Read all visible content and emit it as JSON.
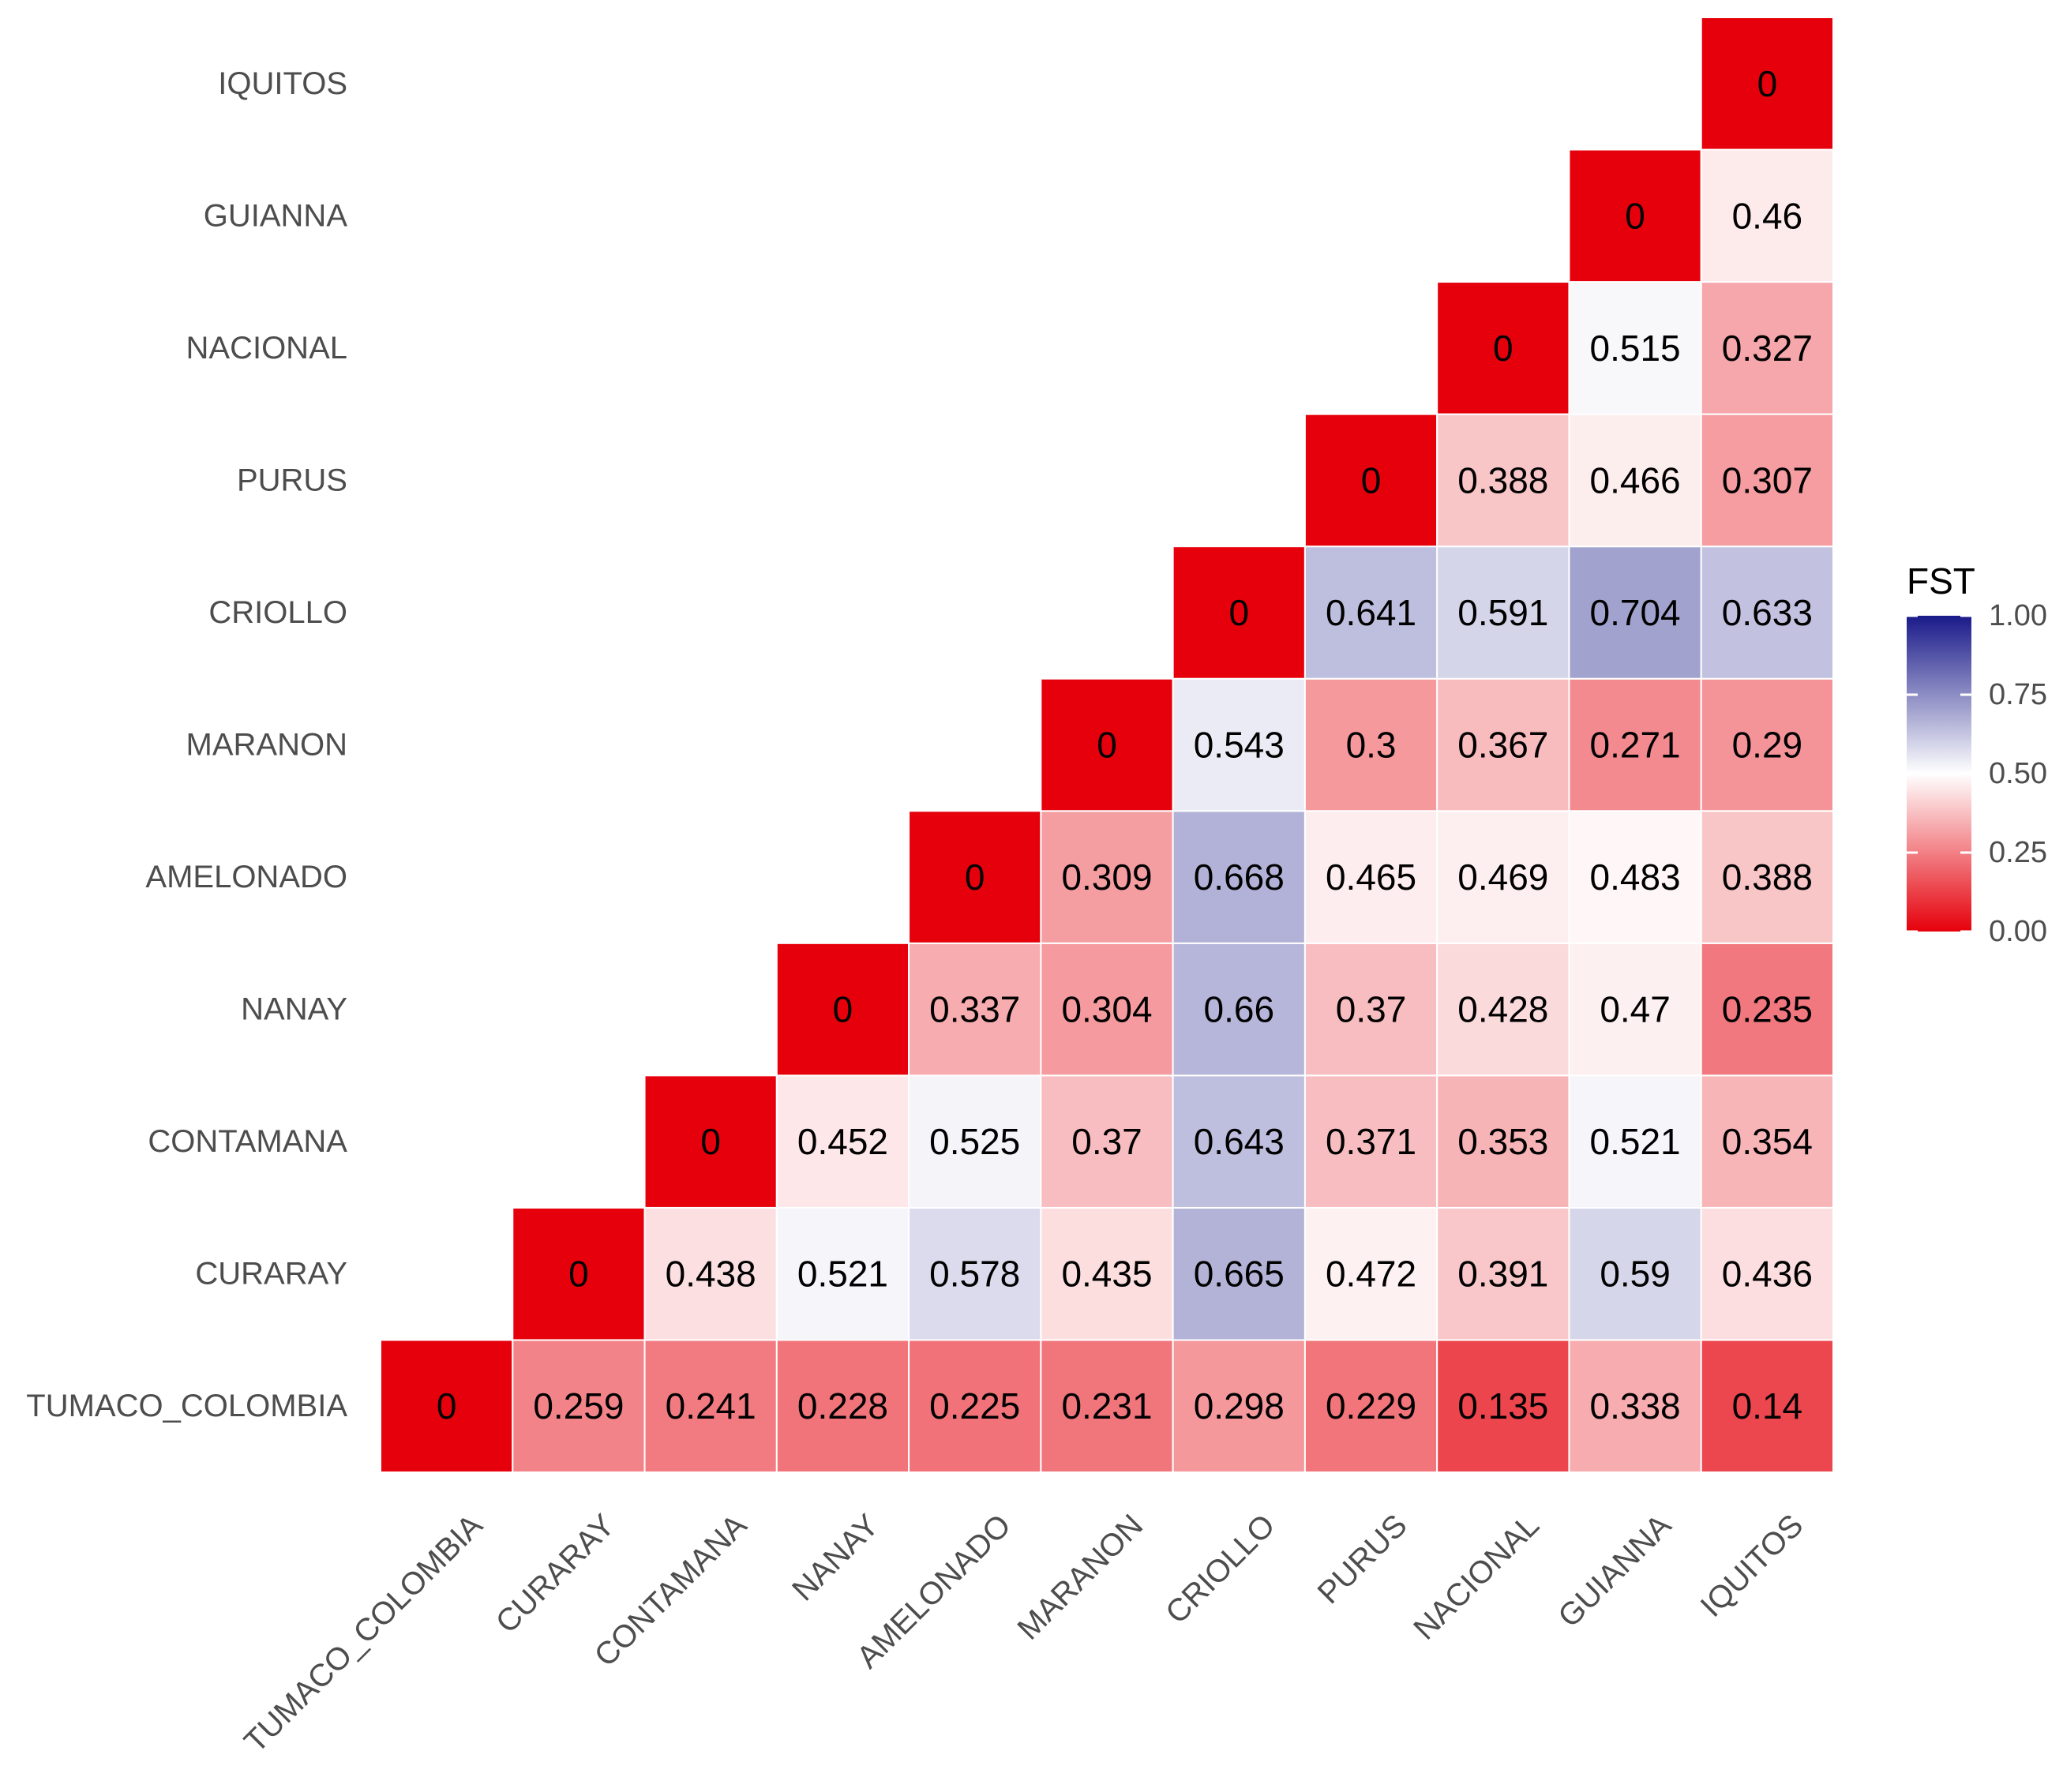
{
  "chart_data": {
    "type": "heatmap",
    "title": "",
    "xlabel": "",
    "ylabel": "",
    "legend_title": "FST",
    "legend_position": "right",
    "legend_range": [
      0,
      1
    ],
    "legend_ticks": [
      "0.00",
      "0.25",
      "0.50",
      "0.75",
      "1.00"
    ],
    "colors": {
      "low": "#e5000b",
      "mid": "#ffffff",
      "high": "#1a1a8a",
      "midpoint": 0.5,
      "cell_border": "#ffffff",
      "label_text": "#4d4d4d"
    },
    "x_categories": [
      "TUMACO_COLOMBIA",
      "CURARAY",
      "CONTAMANA",
      "NANAY",
      "AMELONADO",
      "MARANON",
      "CRIOLLO",
      "PURUS",
      "NACIONAL",
      "GUIANNA",
      "IQUITOS"
    ],
    "y_categories": [
      "TUMACO_COLOMBIA",
      "CURARAY",
      "CONTAMANA",
      "NANAY",
      "AMELONADO",
      "MARANON",
      "CRIOLLO",
      "PURUS",
      "NACIONAL",
      "GUIANNA",
      "IQUITOS"
    ],
    "cells": [
      {
        "x": "TUMACO_COLOMBIA",
        "y": "TUMACO_COLOMBIA",
        "value": 0,
        "label": "0"
      },
      {
        "x": "CURARAY",
        "y": "TUMACO_COLOMBIA",
        "value": 0.259,
        "label": "0.259"
      },
      {
        "x": "CONTAMANA",
        "y": "TUMACO_COLOMBIA",
        "value": 0.241,
        "label": "0.241"
      },
      {
        "x": "NANAY",
        "y": "TUMACO_COLOMBIA",
        "value": 0.228,
        "label": "0.228"
      },
      {
        "x": "AMELONADO",
        "y": "TUMACO_COLOMBIA",
        "value": 0.225,
        "label": "0.225"
      },
      {
        "x": "MARANON",
        "y": "TUMACO_COLOMBIA",
        "value": 0.231,
        "label": "0.231"
      },
      {
        "x": "CRIOLLO",
        "y": "TUMACO_COLOMBIA",
        "value": 0.298,
        "label": "0.298"
      },
      {
        "x": "PURUS",
        "y": "TUMACO_COLOMBIA",
        "value": 0.229,
        "label": "0.229"
      },
      {
        "x": "NACIONAL",
        "y": "TUMACO_COLOMBIA",
        "value": 0.135,
        "label": "0.135"
      },
      {
        "x": "GUIANNA",
        "y": "TUMACO_COLOMBIA",
        "value": 0.338,
        "label": "0.338"
      },
      {
        "x": "IQUITOS",
        "y": "TUMACO_COLOMBIA",
        "value": 0.14,
        "label": "0.14"
      },
      {
        "x": "CURARAY",
        "y": "CURARAY",
        "value": 0,
        "label": "0"
      },
      {
        "x": "CONTAMANA",
        "y": "CURARAY",
        "value": 0.438,
        "label": "0.438"
      },
      {
        "x": "NANAY",
        "y": "CURARAY",
        "value": 0.521,
        "label": "0.521"
      },
      {
        "x": "AMELONADO",
        "y": "CURARAY",
        "value": 0.578,
        "label": "0.578"
      },
      {
        "x": "MARANON",
        "y": "CURARAY",
        "value": 0.435,
        "label": "0.435"
      },
      {
        "x": "CRIOLLO",
        "y": "CURARAY",
        "value": 0.665,
        "label": "0.665"
      },
      {
        "x": "PURUS",
        "y": "CURARAY",
        "value": 0.472,
        "label": "0.472"
      },
      {
        "x": "NACIONAL",
        "y": "CURARAY",
        "value": 0.391,
        "label": "0.391"
      },
      {
        "x": "GUIANNA",
        "y": "CURARAY",
        "value": 0.59,
        "label": "0.59"
      },
      {
        "x": "IQUITOS",
        "y": "CURARAY",
        "value": 0.436,
        "label": "0.436"
      },
      {
        "x": "CONTAMANA",
        "y": "CONTAMANA",
        "value": 0,
        "label": "0"
      },
      {
        "x": "NANAY",
        "y": "CONTAMANA",
        "value": 0.452,
        "label": "0.452"
      },
      {
        "x": "AMELONADO",
        "y": "CONTAMANA",
        "value": 0.525,
        "label": "0.525"
      },
      {
        "x": "MARANON",
        "y": "CONTAMANA",
        "value": 0.37,
        "label": "0.37"
      },
      {
        "x": "CRIOLLO",
        "y": "CONTAMANA",
        "value": 0.643,
        "label": "0.643"
      },
      {
        "x": "PURUS",
        "y": "CONTAMANA",
        "value": 0.371,
        "label": "0.371"
      },
      {
        "x": "NACIONAL",
        "y": "CONTAMANA",
        "value": 0.353,
        "label": "0.353"
      },
      {
        "x": "GUIANNA",
        "y": "CONTAMANA",
        "value": 0.521,
        "label": "0.521"
      },
      {
        "x": "IQUITOS",
        "y": "CONTAMANA",
        "value": 0.354,
        "label": "0.354"
      },
      {
        "x": "NANAY",
        "y": "NANAY",
        "value": 0,
        "label": "0"
      },
      {
        "x": "AMELONADO",
        "y": "NANAY",
        "value": 0.337,
        "label": "0.337"
      },
      {
        "x": "MARANON",
        "y": "NANAY",
        "value": 0.304,
        "label": "0.304"
      },
      {
        "x": "CRIOLLO",
        "y": "NANAY",
        "value": 0.66,
        "label": "0.66"
      },
      {
        "x": "PURUS",
        "y": "NANAY",
        "value": 0.37,
        "label": "0.37"
      },
      {
        "x": "NACIONAL",
        "y": "NANAY",
        "value": 0.428,
        "label": "0.428"
      },
      {
        "x": "GUIANNA",
        "y": "NANAY",
        "value": 0.47,
        "label": "0.47"
      },
      {
        "x": "IQUITOS",
        "y": "NANAY",
        "value": 0.235,
        "label": "0.235"
      },
      {
        "x": "AMELONADO",
        "y": "AMELONADO",
        "value": 0,
        "label": "0"
      },
      {
        "x": "MARANON",
        "y": "AMELONADO",
        "value": 0.309,
        "label": "0.309"
      },
      {
        "x": "CRIOLLO",
        "y": "AMELONADO",
        "value": 0.668,
        "label": "0.668"
      },
      {
        "x": "PURUS",
        "y": "AMELONADO",
        "value": 0.465,
        "label": "0.465"
      },
      {
        "x": "NACIONAL",
        "y": "AMELONADO",
        "value": 0.469,
        "label": "0.469"
      },
      {
        "x": "GUIANNA",
        "y": "AMELONADO",
        "value": 0.483,
        "label": "0.483"
      },
      {
        "x": "IQUITOS",
        "y": "AMELONADO",
        "value": 0.388,
        "label": "0.388"
      },
      {
        "x": "MARANON",
        "y": "MARANON",
        "value": 0,
        "label": "0"
      },
      {
        "x": "CRIOLLO",
        "y": "MARANON",
        "value": 0.543,
        "label": "0.543"
      },
      {
        "x": "PURUS",
        "y": "MARANON",
        "value": 0.3,
        "label": "0.3"
      },
      {
        "x": "NACIONAL",
        "y": "MARANON",
        "value": 0.367,
        "label": "0.367"
      },
      {
        "x": "GUIANNA",
        "y": "MARANON",
        "value": 0.271,
        "label": "0.271"
      },
      {
        "x": "IQUITOS",
        "y": "MARANON",
        "value": 0.29,
        "label": "0.29"
      },
      {
        "x": "CRIOLLO",
        "y": "CRIOLLO",
        "value": 0,
        "label": "0"
      },
      {
        "x": "PURUS",
        "y": "CRIOLLO",
        "value": 0.641,
        "label": "0.641"
      },
      {
        "x": "NACIONAL",
        "y": "CRIOLLO",
        "value": 0.591,
        "label": "0.591"
      },
      {
        "x": "GUIANNA",
        "y": "CRIOLLO",
        "value": 0.704,
        "label": "0.704"
      },
      {
        "x": "IQUITOS",
        "y": "CRIOLLO",
        "value": 0.633,
        "label": "0.633"
      },
      {
        "x": "PURUS",
        "y": "PURUS",
        "value": 0,
        "label": "0"
      },
      {
        "x": "NACIONAL",
        "y": "PURUS",
        "value": 0.388,
        "label": "0.388"
      },
      {
        "x": "GUIANNA",
        "y": "PURUS",
        "value": 0.466,
        "label": "0.466"
      },
      {
        "x": "IQUITOS",
        "y": "PURUS",
        "value": 0.307,
        "label": "0.307"
      },
      {
        "x": "NACIONAL",
        "y": "NACIONAL",
        "value": 0,
        "label": "0"
      },
      {
        "x": "GUIANNA",
        "y": "NACIONAL",
        "value": 0.515,
        "label": "0.515"
      },
      {
        "x": "IQUITOS",
        "y": "NACIONAL",
        "value": 0.327,
        "label": "0.327"
      },
      {
        "x": "GUIANNA",
        "y": "GUIANNA",
        "value": 0,
        "label": "0"
      },
      {
        "x": "IQUITOS",
        "y": "GUIANNA",
        "value": 0.46,
        "label": "0.46"
      },
      {
        "x": "IQUITOS",
        "y": "IQUITOS",
        "value": 0,
        "label": "0"
      }
    ]
  }
}
